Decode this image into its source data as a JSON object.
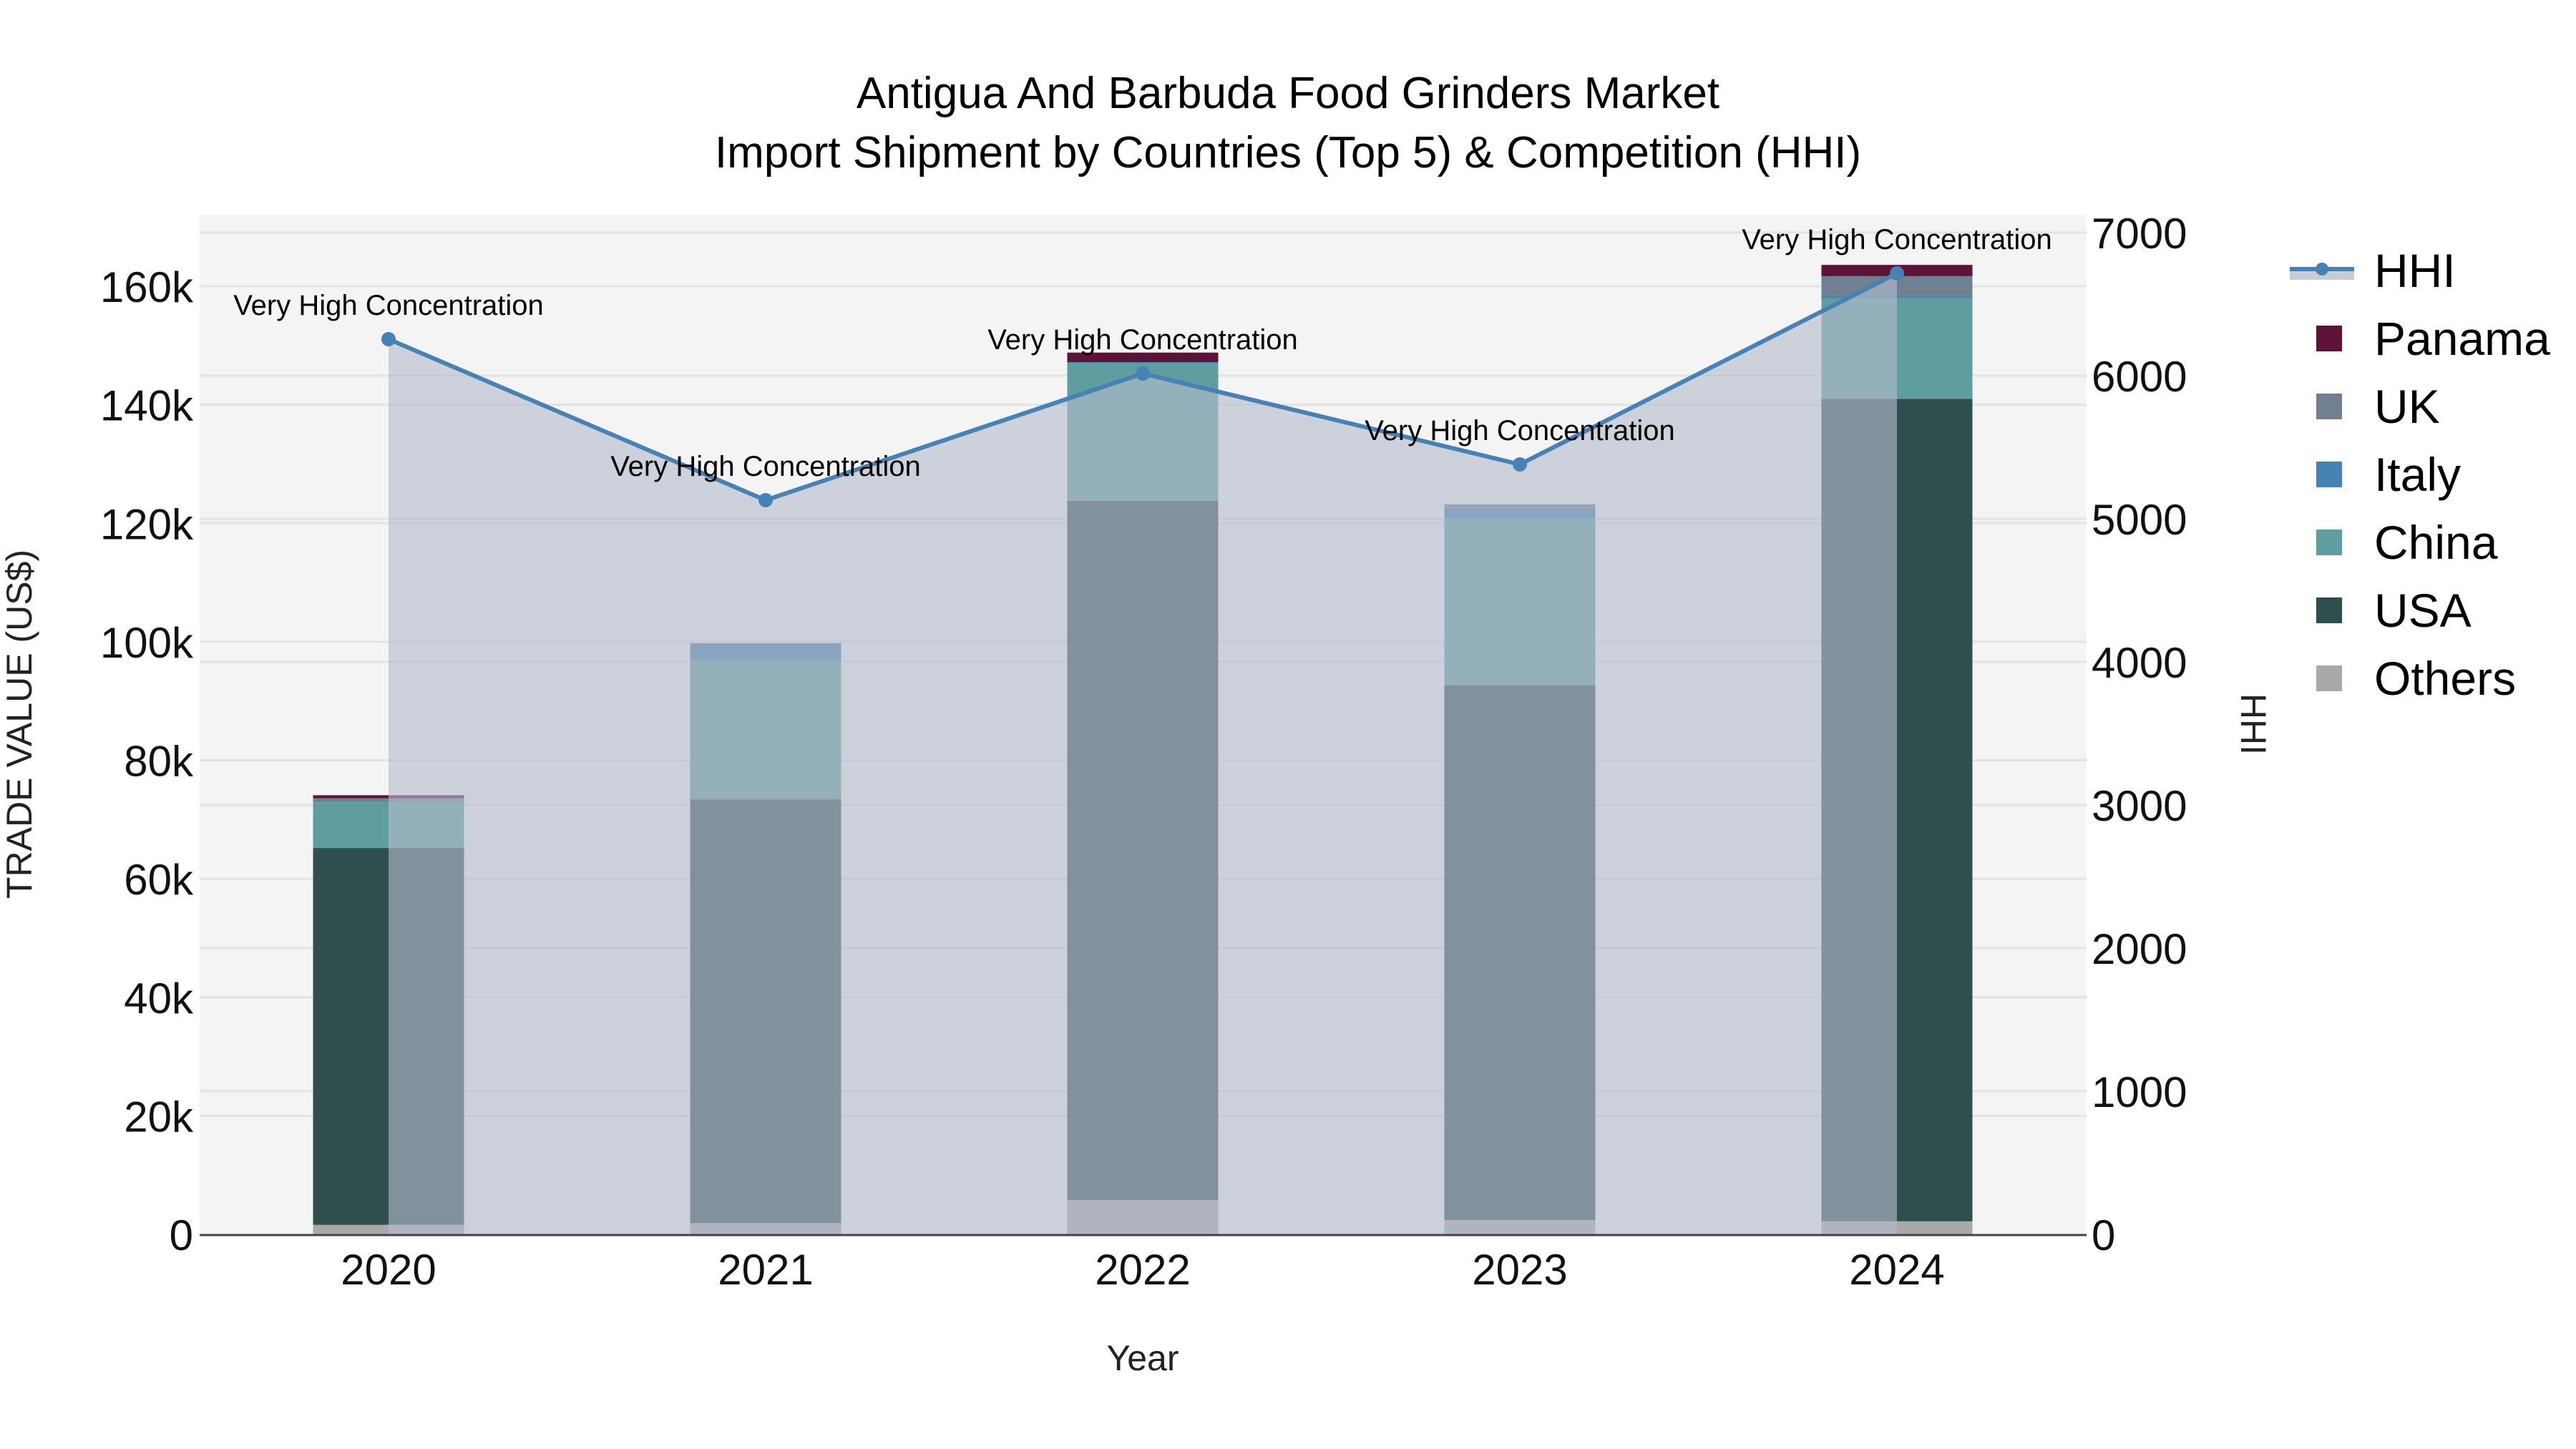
{
  "title": {
    "line1": "Antigua And Barbuda Food Grinders Market",
    "line2": "Import Shipment by Countries (Top 5) & Competition (HHI)"
  },
  "axes": {
    "x_title": "Year",
    "y_left_title": "TRADE VALUE (US$)",
    "y_right_title": "HHI",
    "y_left_ticks": [
      "0",
      "20k",
      "40k",
      "60k",
      "80k",
      "100k",
      "120k",
      "140k",
      "160k"
    ],
    "y_right_ticks": [
      "0",
      "1000",
      "2000",
      "3000",
      "4000",
      "5000",
      "6000",
      "7000"
    ]
  },
  "legend": {
    "items": [
      {
        "label": "HHI",
        "type": "line",
        "color": "#4682b4"
      },
      {
        "label": "Panama",
        "type": "bar",
        "color": "#5e1235"
      },
      {
        "label": "UK",
        "type": "bar",
        "color": "#708090"
      },
      {
        "label": "Italy",
        "type": "bar",
        "color": "#4682b4"
      },
      {
        "label": "China",
        "type": "bar",
        "color": "#5f9ea0"
      },
      {
        "label": "USA",
        "type": "bar",
        "color": "#2f4f4f"
      },
      {
        "label": "Others",
        "type": "bar",
        "color": "#a9a9a9"
      }
    ]
  },
  "colors": {
    "plot_bg": "#f4f4f4",
    "grid": "#e3e3e3",
    "hhi_line": "#4682b4",
    "hhi_fill": "#c8cdd5",
    "axis_line": "#444444"
  },
  "chart_data": {
    "type": "bar",
    "stacked": true,
    "title": "Antigua And Barbuda Food Grinders Market\nImport Shipment by Countries (Top 5) & Competition (HHI)",
    "xlabel": "Year",
    "ylabel": "TRADE VALUE (US$)",
    "y2label": "HHI",
    "categories": [
      "2020",
      "2021",
      "2022",
      "2023",
      "2024"
    ],
    "ylim": [
      0,
      172000
    ],
    "y2lim": [
      0,
      7125
    ],
    "grid": true,
    "legend_position": "right",
    "series": [
      {
        "name": "Others",
        "color": "#a9a9a9",
        "values": [
          1600,
          1900,
          5800,
          2400,
          2200
        ]
      },
      {
        "name": "USA",
        "color": "#2f4f4f",
        "values": [
          63600,
          71500,
          118000,
          90300,
          138800
        ]
      },
      {
        "name": "China",
        "color": "#5f9ea0",
        "values": [
          7800,
          23500,
          23200,
          28000,
          17000
        ]
      },
      {
        "name": "Italy",
        "color": "#4682b4",
        "values": [
          0,
          2700,
          200,
          1900,
          400
        ]
      },
      {
        "name": "UK",
        "color": "#708090",
        "values": [
          600,
          0,
          0,
          600,
          3300
        ]
      },
      {
        "name": "Panama",
        "color": "#5e1235",
        "values": [
          500,
          100,
          1600,
          0,
          1900
        ]
      }
    ],
    "totals": [
      74100,
      99600,
      148800,
      123300,
      163500
    ],
    "hhi": {
      "name": "HHI",
      "axis": "right",
      "type": "line+area",
      "values": [
        6255,
        5130,
        6015,
        5380,
        6715
      ],
      "annotations": [
        "Very High Concentration",
        "Very High Concentration",
        "Very High Concentration",
        "Very High Concentration",
        "Very High Concentration"
      ]
    }
  }
}
